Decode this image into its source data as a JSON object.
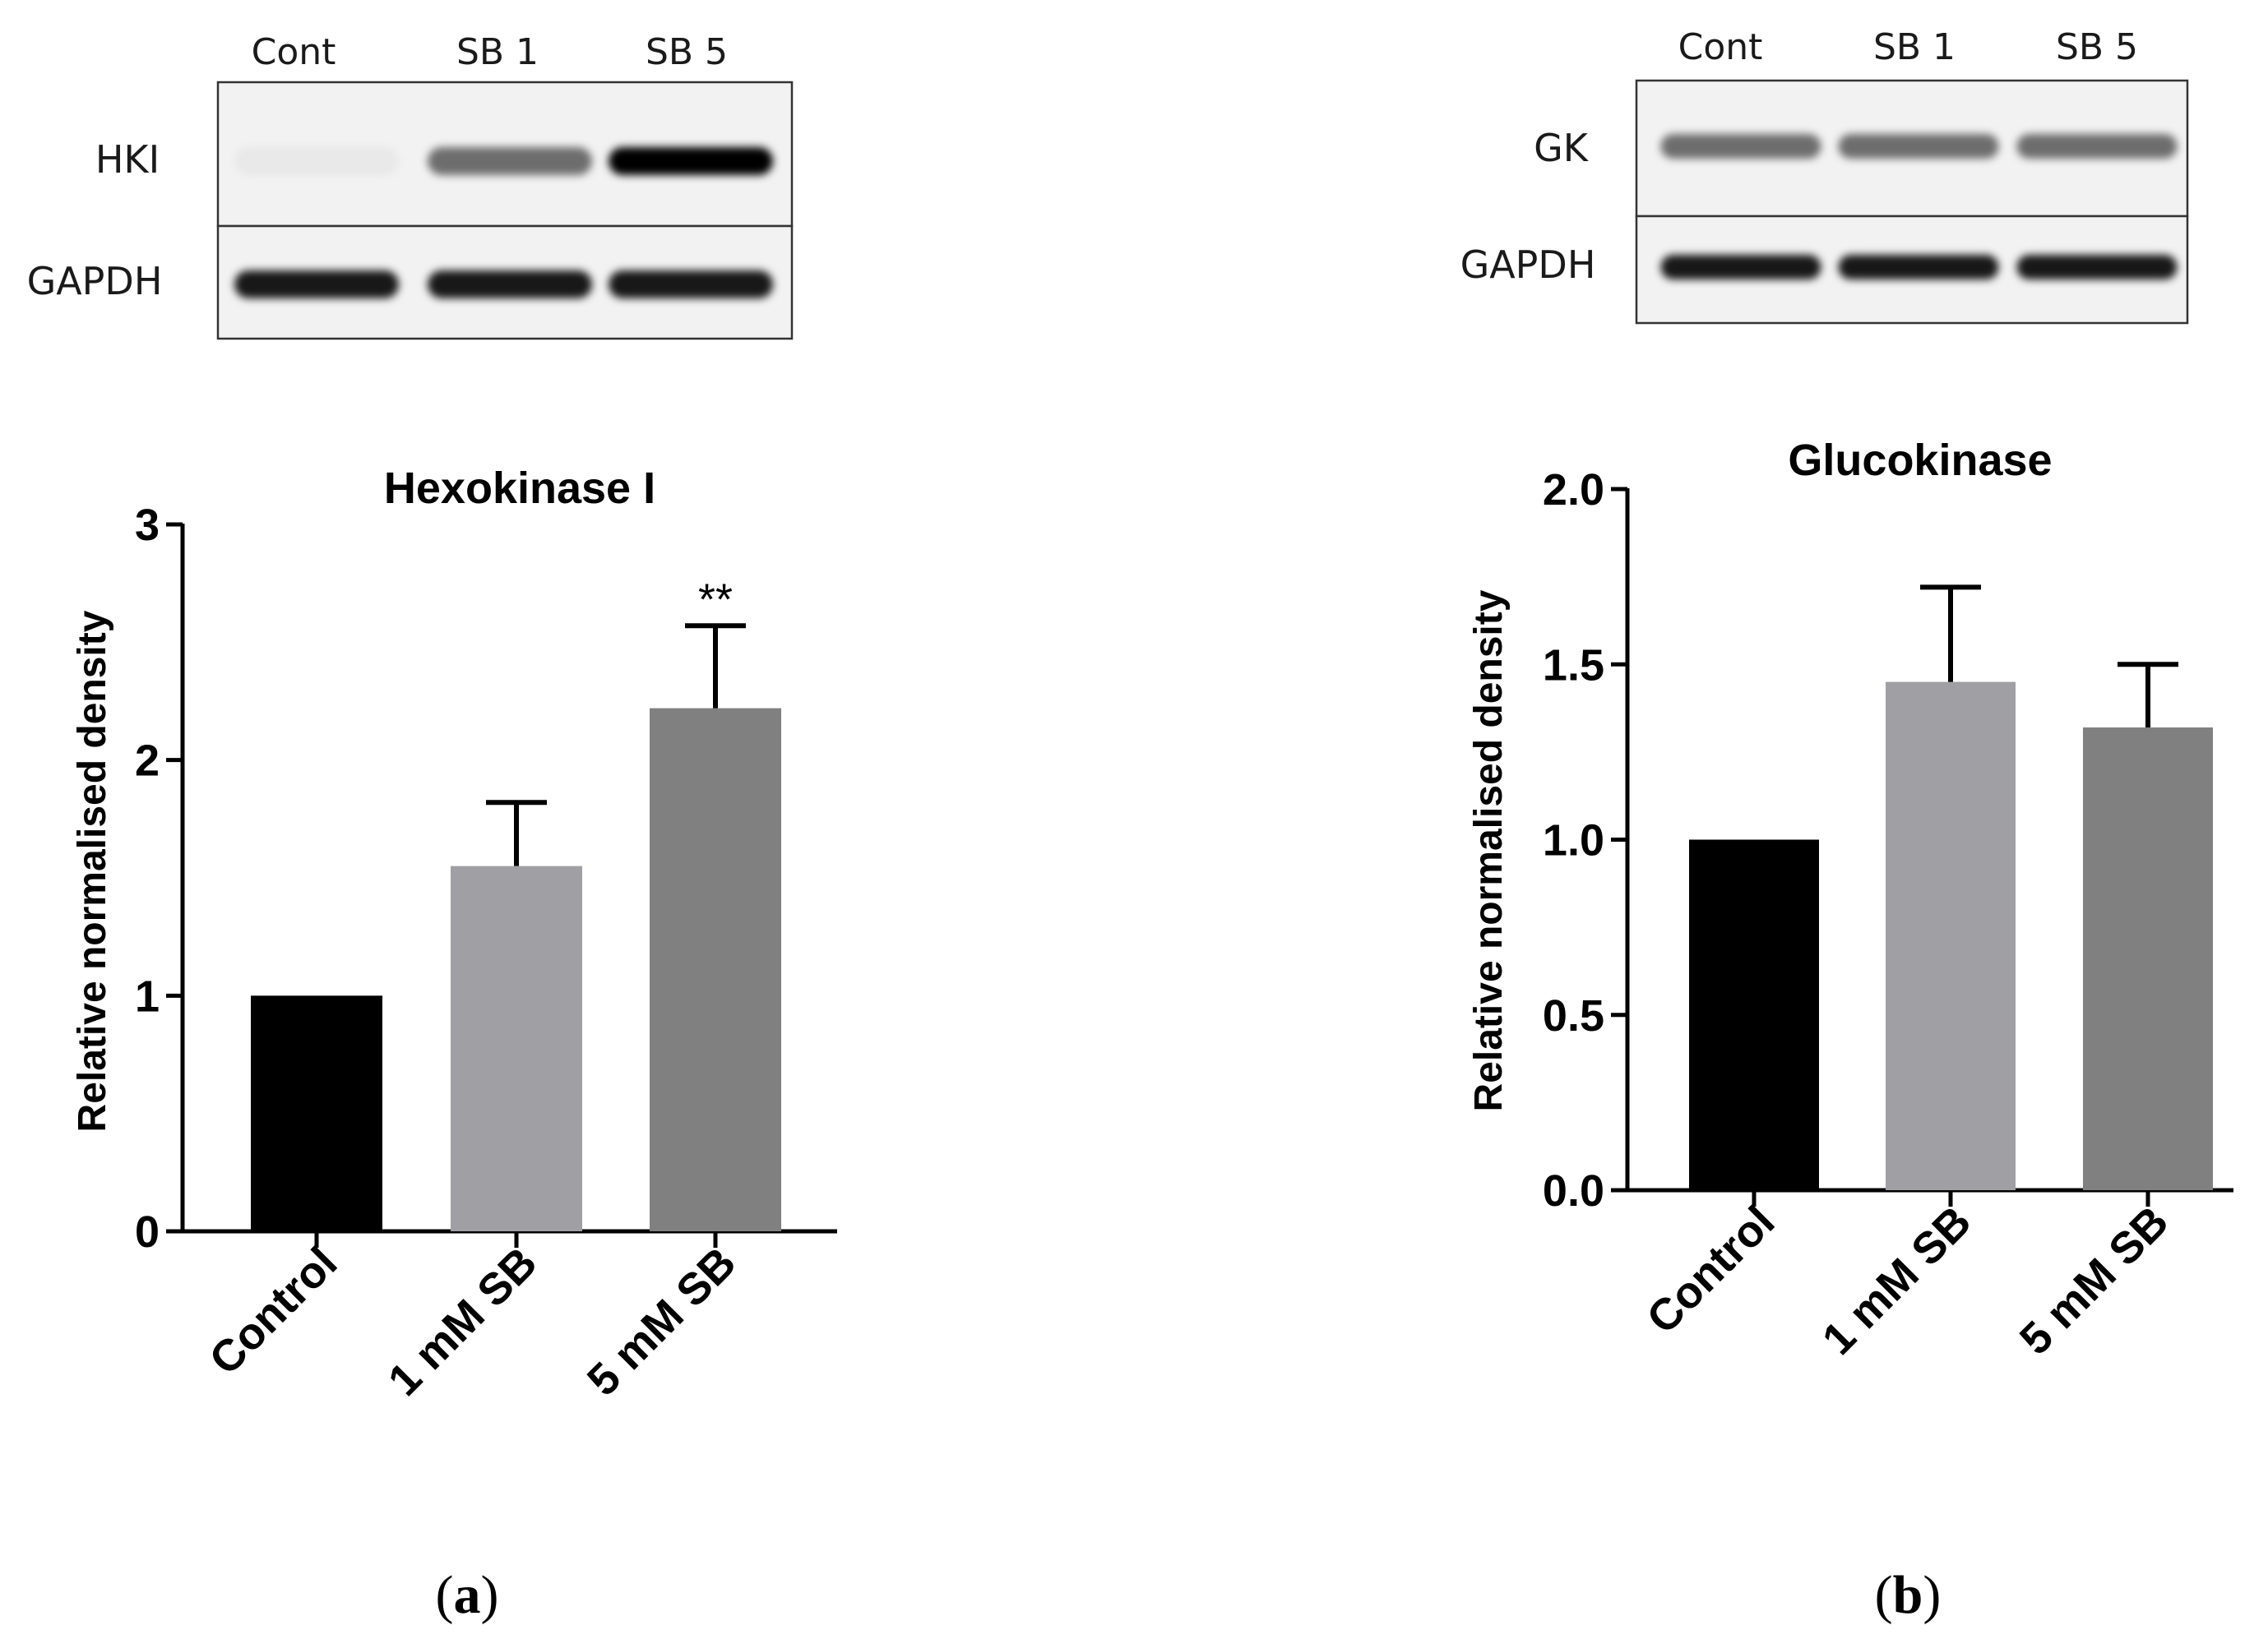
{
  "blots": [
    {
      "lanes": [
        "Cont",
        "SB 1",
        "SB 5"
      ],
      "rows": [
        "HKI",
        "GAPDH"
      ],
      "top_band_intensity": [
        0.04,
        0.55,
        1.0
      ],
      "gapdh_band_intensity": [
        0.9,
        0.9,
        0.9
      ]
    },
    {
      "lanes": [
        "Cont",
        "SB 1",
        "SB 5"
      ],
      "rows": [
        "GK",
        "GAPDH"
      ],
      "top_band_intensity": [
        0.55,
        0.55,
        0.55
      ],
      "gapdh_band_intensity": [
        0.9,
        0.9,
        0.9
      ]
    }
  ],
  "chart_data": [
    {
      "type": "bar",
      "title": "Hexokinase I",
      "ylabel": "Relative normalised density",
      "xlabel": "",
      "categories": [
        "Control",
        "1 mM SB",
        "5 mM SB"
      ],
      "values": [
        1.0,
        1.55,
        2.22
      ],
      "error": [
        0,
        0.27,
        0.35
      ],
      "ylim": [
        0,
        3
      ],
      "yticks": [
        "0",
        "1",
        "2",
        "3"
      ],
      "ytick_values": [
        0,
        1,
        2,
        3
      ],
      "colors": [
        "#000000",
        "#a0a0a4",
        "#808080"
      ],
      "annotations": [
        {
          "category": "5 mM SB",
          "text": "**"
        }
      ],
      "grid": false,
      "legend": "none"
    },
    {
      "type": "bar",
      "title": "Glucokinase",
      "ylabel": "Relative normalised density",
      "xlabel": "",
      "categories": [
        "Control",
        "1 mM SB",
        "5 mM SB"
      ],
      "values": [
        1.0,
        1.45,
        1.32
      ],
      "error": [
        0,
        0.27,
        0.18
      ],
      "ylim": [
        0,
        2
      ],
      "yticks": [
        "0.0",
        "0.5",
        "1.0",
        "1.5",
        "2.0"
      ],
      "ytick_values": [
        0,
        0.5,
        1.0,
        1.5,
        2.0
      ],
      "colors": [
        "#000000",
        "#a0a0a4",
        "#808080"
      ],
      "annotations": [],
      "grid": false,
      "legend": "none"
    }
  ],
  "panel_labels": [
    {
      "open": "(",
      "letter": "a",
      "close": ")"
    },
    {
      "open": "(",
      "letter": "b",
      "close": ")"
    }
  ]
}
